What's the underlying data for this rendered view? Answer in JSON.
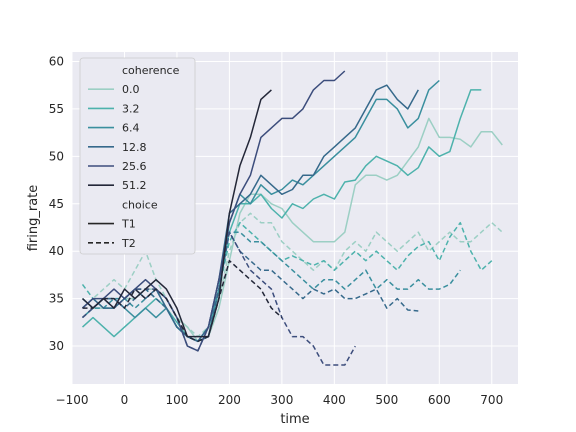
{
  "chart_data": {
    "type": "line",
    "xlabel": "time",
    "ylabel": "firing_rate",
    "xlim": [
      -100,
      750
    ],
    "ylim": [
      26,
      61
    ],
    "xticks": [
      -100,
      0,
      100,
      200,
      300,
      400,
      500,
      600,
      700
    ],
    "yticks": [
      30,
      35,
      40,
      45,
      50,
      55,
      60
    ],
    "grid": true,
    "legend_position": "top-left",
    "legend": {
      "hue_title": "coherence",
      "style_title": "choice"
    },
    "series": [
      {
        "name": "0.0",
        "choice": "T1",
        "color": "#9ccfc4",
        "x": [
          -80,
          -60,
          -40,
          -20,
          0,
          20,
          40,
          60,
          80,
          100,
          120,
          140,
          160,
          180,
          200,
          220,
          240,
          260,
          280,
          300,
          320,
          340,
          360,
          380,
          400,
          420,
          440,
          460,
          480,
          500,
          520,
          540,
          560,
          580,
          600,
          620,
          640,
          660,
          680,
          700,
          720
        ],
        "y": [
          33,
          34,
          34,
          34,
          35,
          35,
          36,
          36,
          35,
          33,
          32,
          30.5,
          31,
          34,
          39,
          44,
          46,
          46,
          45,
          44.5,
          43,
          42,
          41,
          41,
          41,
          42,
          47,
          48,
          48,
          47.5,
          48,
          49.5,
          51,
          54,
          52,
          52,
          51.8,
          51,
          52.6,
          52.6,
          51.2
        ]
      },
      {
        "name": "0.0",
        "choice": "T2",
        "color": "#9ccfc4",
        "x": [
          -80,
          -60,
          -40,
          -20,
          0,
          20,
          40,
          60,
          80,
          100,
          120,
          140,
          160,
          180,
          200,
          220,
          240,
          260,
          280,
          300,
          320,
          340,
          360,
          380,
          400,
          420,
          440,
          460,
          480,
          500,
          520,
          540,
          560,
          580,
          600,
          620,
          640,
          660,
          680,
          700,
          720
        ],
        "y": [
          34,
          35,
          36,
          37,
          36,
          38,
          40,
          37,
          35,
          33,
          32,
          31,
          32,
          35,
          40,
          43,
          44,
          43,
          43,
          41,
          40,
          39,
          38,
          39,
          38,
          40,
          41,
          40,
          42,
          41,
          40,
          41,
          42,
          40,
          41,
          42,
          41,
          41,
          42,
          43,
          42
        ]
      },
      {
        "name": "3.2",
        "choice": "T1",
        "color": "#4db2ac",
        "x": [
          -80,
          -60,
          -40,
          -20,
          0,
          20,
          40,
          60,
          80,
          100,
          120,
          140,
          160,
          180,
          200,
          220,
          240,
          260,
          280,
          300,
          320,
          340,
          360,
          380,
          400,
          420,
          440,
          460,
          480,
          500,
          520,
          540,
          560,
          580,
          600,
          620,
          640,
          660,
          680
        ],
        "y": [
          32,
          33,
          32,
          31,
          32,
          33,
          34,
          35,
          34,
          32.5,
          31,
          30.5,
          31,
          36,
          42,
          45,
          45,
          46,
          44.5,
          43.5,
          45,
          44.5,
          45.5,
          46,
          45.5,
          47.3,
          47.5,
          49,
          50,
          49.5,
          49,
          48,
          48.8,
          51,
          50,
          50.5,
          54,
          57,
          57
        ]
      },
      {
        "name": "3.2",
        "choice": "T2",
        "color": "#4db2ac",
        "x": [
          -80,
          -60,
          -40,
          -20,
          0,
          20,
          40,
          60,
          80,
          100,
          120,
          140,
          160,
          180,
          200,
          220,
          240,
          260,
          280,
          300,
          320,
          340,
          360,
          380,
          400,
          420,
          440,
          460,
          480,
          500,
          520,
          540,
          560,
          580,
          600,
          620,
          640,
          660,
          680,
          700
        ],
        "y": [
          36.5,
          35,
          34,
          34,
          35,
          36,
          36,
          35,
          34,
          32,
          31,
          30.5,
          32,
          36,
          41,
          43,
          42,
          41,
          40,
          39,
          39.5,
          39,
          38.5,
          39,
          38,
          39,
          40,
          39,
          40,
          39,
          38,
          39.5,
          40.5,
          41,
          39,
          41.5,
          43,
          40,
          38,
          39
        ]
      },
      {
        "name": "6.4",
        "choice": "T1",
        "color": "#3a8f9e",
        "x": [
          -80,
          -60,
          -40,
          -20,
          0,
          20,
          40,
          60,
          80,
          100,
          120,
          140,
          160,
          180,
          200,
          220,
          240,
          260,
          280,
          300,
          320,
          340,
          360,
          380,
          400,
          420,
          440,
          460,
          480,
          500,
          520,
          540,
          560,
          580,
          600
        ],
        "y": [
          33,
          34,
          35,
          35,
          34,
          33,
          34,
          33,
          34,
          32,
          31,
          30.5,
          31,
          36,
          43,
          46,
          45,
          47,
          46,
          46.5,
          47.5,
          47,
          48,
          49,
          50,
          51,
          52,
          54,
          56,
          56,
          55,
          53,
          54,
          57,
          58
        ]
      },
      {
        "name": "6.4",
        "choice": "T2",
        "color": "#3a8f9e",
        "x": [
          -80,
          -60,
          -40,
          -20,
          0,
          20,
          40,
          60,
          80,
          100,
          120,
          140,
          160,
          180,
          200,
          220,
          240,
          260,
          280,
          300,
          320,
          340,
          360,
          380,
          400,
          420,
          440,
          460,
          480,
          500,
          520,
          540,
          560,
          580,
          600,
          620,
          640
        ],
        "y": [
          35,
          34,
          34,
          35,
          35,
          34,
          35,
          36,
          34,
          32,
          31,
          30.5,
          32,
          36,
          42,
          42,
          41,
          41,
          40,
          39,
          38,
          37,
          36,
          37,
          37,
          36,
          37,
          38,
          36,
          37,
          36,
          36,
          37,
          36,
          36,
          36.5,
          38
        ]
      },
      {
        "name": "12.8",
        "choice": "T1",
        "color": "#36698b",
        "x": [
          -80,
          -60,
          -40,
          -20,
          0,
          20,
          40,
          60,
          80,
          100,
          120,
          140,
          160,
          180,
          200,
          220,
          240,
          260,
          280,
          300,
          320,
          340,
          360,
          380,
          400,
          420,
          440,
          460,
          480,
          500,
          520,
          540,
          560
        ],
        "y": [
          34,
          35,
          34,
          34,
          35,
          36,
          35,
          36,
          34,
          32,
          31,
          30.5,
          32,
          37,
          44,
          45,
          46,
          48,
          47,
          46,
          46.5,
          48,
          48,
          50,
          51,
          52,
          53,
          55,
          57,
          57.5,
          56,
          55,
          57
        ]
      },
      {
        "name": "12.8",
        "choice": "T2",
        "color": "#36698b",
        "x": [
          -80,
          -60,
          -40,
          -20,
          0,
          20,
          40,
          60,
          80,
          100,
          120,
          140,
          160,
          180,
          200,
          220,
          240,
          260,
          280,
          300,
          320,
          340,
          360,
          380,
          400,
          420,
          440,
          460,
          480,
          500,
          520,
          540,
          560
        ],
        "y": [
          33,
          34,
          35,
          35,
          34,
          35,
          36,
          35,
          34,
          32,
          31,
          30.5,
          31,
          36,
          42,
          40,
          39,
          38,
          38,
          37,
          36,
          35,
          36,
          35.5,
          36,
          35,
          35,
          35.5,
          36,
          34,
          35,
          33.8,
          33.7
        ]
      },
      {
        "name": "25.6",
        "choice": "T1",
        "color": "#3c4d7c",
        "x": [
          -80,
          -60,
          -40,
          -20,
          0,
          20,
          40,
          60,
          80,
          100,
          120,
          140,
          160,
          180,
          200,
          220,
          240,
          260,
          280,
          300,
          320,
          340,
          360,
          380,
          400,
          420
        ],
        "y": [
          34,
          35,
          35,
          36,
          35,
          36,
          37,
          36,
          35,
          33,
          30,
          29.5,
          32,
          37,
          43,
          46,
          48,
          52,
          53,
          54,
          54,
          55,
          57,
          58,
          58,
          59
        ]
      },
      {
        "name": "25.6",
        "choice": "T2",
        "color": "#3c4d7c",
        "x": [
          -80,
          -60,
          -40,
          -20,
          0,
          20,
          40,
          60,
          80,
          100,
          120,
          140,
          160,
          180,
          200,
          220,
          240,
          260,
          280,
          300,
          320,
          340,
          360,
          380,
          400,
          420,
          440
        ],
        "y": [
          33,
          34,
          35,
          34,
          35,
          36,
          36,
          36,
          35,
          33,
          30,
          29.5,
          32,
          37,
          42,
          40,
          38,
          37,
          36,
          33,
          31,
          31,
          30,
          28,
          28,
          28,
          30
        ]
      },
      {
        "name": "51.2",
        "choice": "T1",
        "color": "#232738",
        "x": [
          -80,
          -60,
          -40,
          -20,
          0,
          20,
          40,
          60,
          80,
          100,
          120,
          140,
          160,
          180,
          200,
          220,
          240,
          260,
          280
        ],
        "y": [
          35,
          34,
          35,
          34,
          36,
          35,
          36,
          37,
          36,
          34,
          31,
          31,
          31,
          35,
          44,
          49,
          52,
          56,
          57
        ]
      },
      {
        "name": "51.2",
        "choice": "T2",
        "color": "#232738",
        "x": [
          -80,
          -60,
          -40,
          -20,
          0,
          20,
          40,
          60,
          80,
          100,
          120,
          140,
          160,
          180,
          200,
          220,
          240,
          260,
          280,
          300
        ],
        "y": [
          34,
          34,
          35,
          35,
          34,
          36,
          35,
          36,
          35,
          33,
          31,
          30.5,
          31,
          35,
          39,
          38,
          37,
          36,
          34,
          33
        ]
      }
    ],
    "legend_items": [
      {
        "label": "coherence",
        "kind": "title"
      },
      {
        "label": "0.0",
        "kind": "hue",
        "color": "#9ccfc4"
      },
      {
        "label": "3.2",
        "kind": "hue",
        "color": "#4db2ac"
      },
      {
        "label": "6.4",
        "kind": "hue",
        "color": "#3a8f9e"
      },
      {
        "label": "12.8",
        "kind": "hue",
        "color": "#36698b"
      },
      {
        "label": "25.6",
        "kind": "hue",
        "color": "#3c4d7c"
      },
      {
        "label": "51.2",
        "kind": "hue",
        "color": "#232738"
      },
      {
        "label": "choice",
        "kind": "title"
      },
      {
        "label": "T1",
        "kind": "style",
        "dash": "solid"
      },
      {
        "label": "T2",
        "kind": "style",
        "dash": "dashed"
      }
    ]
  },
  "colors": {
    "axes_background": "#eaeaf2",
    "grid": "#ffffff",
    "text": "#262626",
    "legend_style_line": "#262626"
  }
}
